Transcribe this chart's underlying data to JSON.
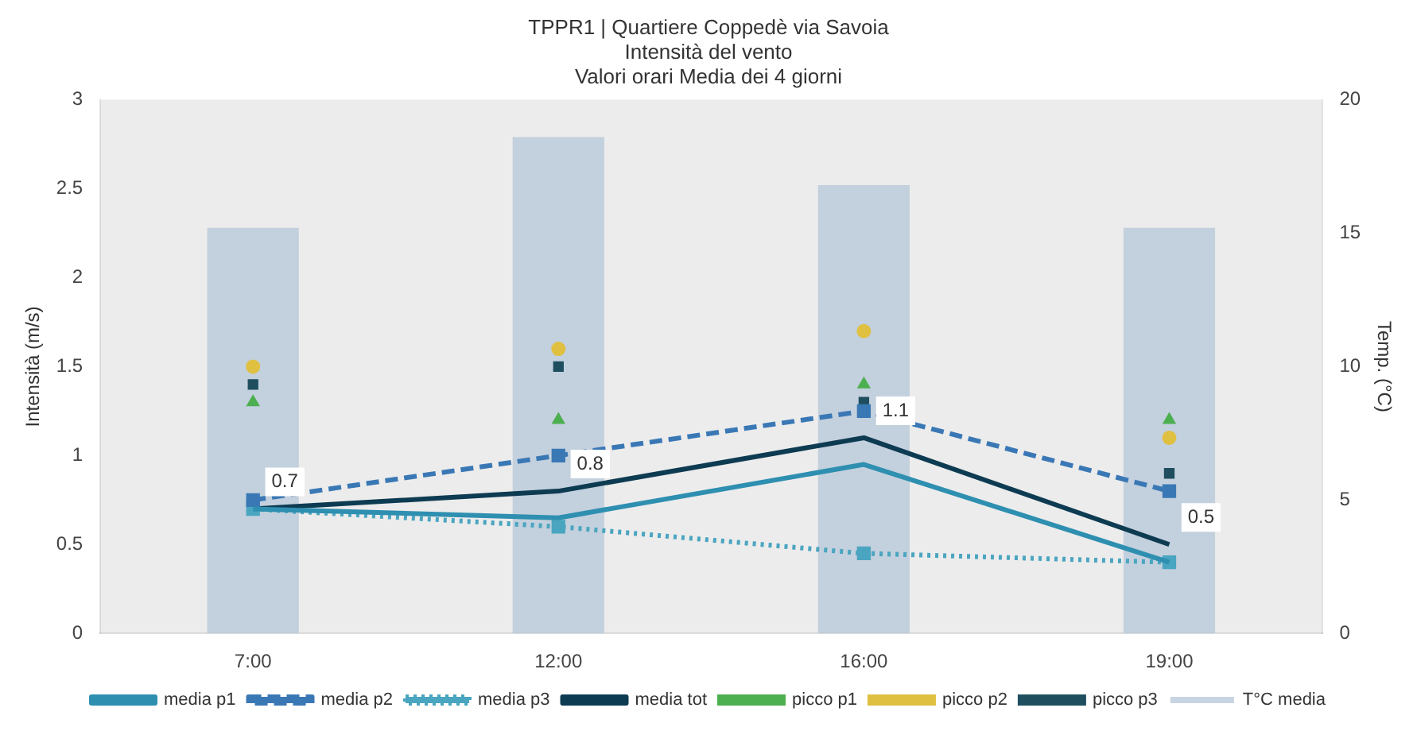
{
  "chart_data": {
    "type": "line",
    "title": [
      "TPPR1 | Quartiere Coppedè via Savoia",
      "Intensità del vento",
      "Valori orari Media dei 4 giorni"
    ],
    "ylabel": "Intensità (m/s)",
    "y2label": "Temp. (°C)",
    "categories": [
      "7:00",
      "12:00",
      "16:00",
      "19:00"
    ],
    "ylim": [
      0,
      3
    ],
    "yticks": [
      0,
      0.5,
      1,
      1.5,
      2,
      2.5,
      3
    ],
    "y2lim": [
      0,
      20
    ],
    "y2ticks": [
      0,
      5,
      10,
      15,
      20
    ],
    "grid": false,
    "legend": "bottom",
    "series": [
      {
        "name": "T°C media",
        "type": "bar",
        "axis": "y2",
        "color": "#b9c9d9",
        "values": [
          15.2,
          18.6,
          16.8,
          15.2
        ]
      },
      {
        "name": "media p1",
        "color": "#2e8fb0",
        "line_style": "solid",
        "marker": "none",
        "values": [
          0.7,
          0.65,
          0.95,
          0.4
        ]
      },
      {
        "name": "media p2",
        "color": "#3a78b5",
        "line_style": "dashed",
        "marker": "square",
        "values": [
          0.75,
          1.0,
          1.25,
          0.8
        ]
      },
      {
        "name": "media p3",
        "color": "#4aa5c0",
        "line_style": "dotted",
        "marker": "square",
        "values": [
          0.7,
          0.6,
          0.45,
          0.4
        ]
      },
      {
        "name": "media tot",
        "color": "#0d3b52",
        "line_style": "solid",
        "marker": "none",
        "values": [
          0.7,
          0.8,
          1.1,
          0.5
        ],
        "value_labels": [
          "0.7",
          "0.8",
          "1.1",
          "0.5"
        ]
      },
      {
        "name": "picco p1",
        "type": "scatter",
        "color": "#4caf50",
        "marker": "triangle",
        "values": [
          1.3,
          1.2,
          1.4,
          1.2
        ]
      },
      {
        "name": "picco p2",
        "type": "scatter",
        "color": "#e0c040",
        "marker": "circle",
        "values": [
          1.5,
          1.6,
          1.7,
          1.1
        ]
      },
      {
        "name": "picco p3",
        "type": "scatter",
        "color": "#1f4e5f",
        "marker": "square",
        "values": [
          1.4,
          1.5,
          1.3,
          0.9
        ]
      }
    ]
  }
}
